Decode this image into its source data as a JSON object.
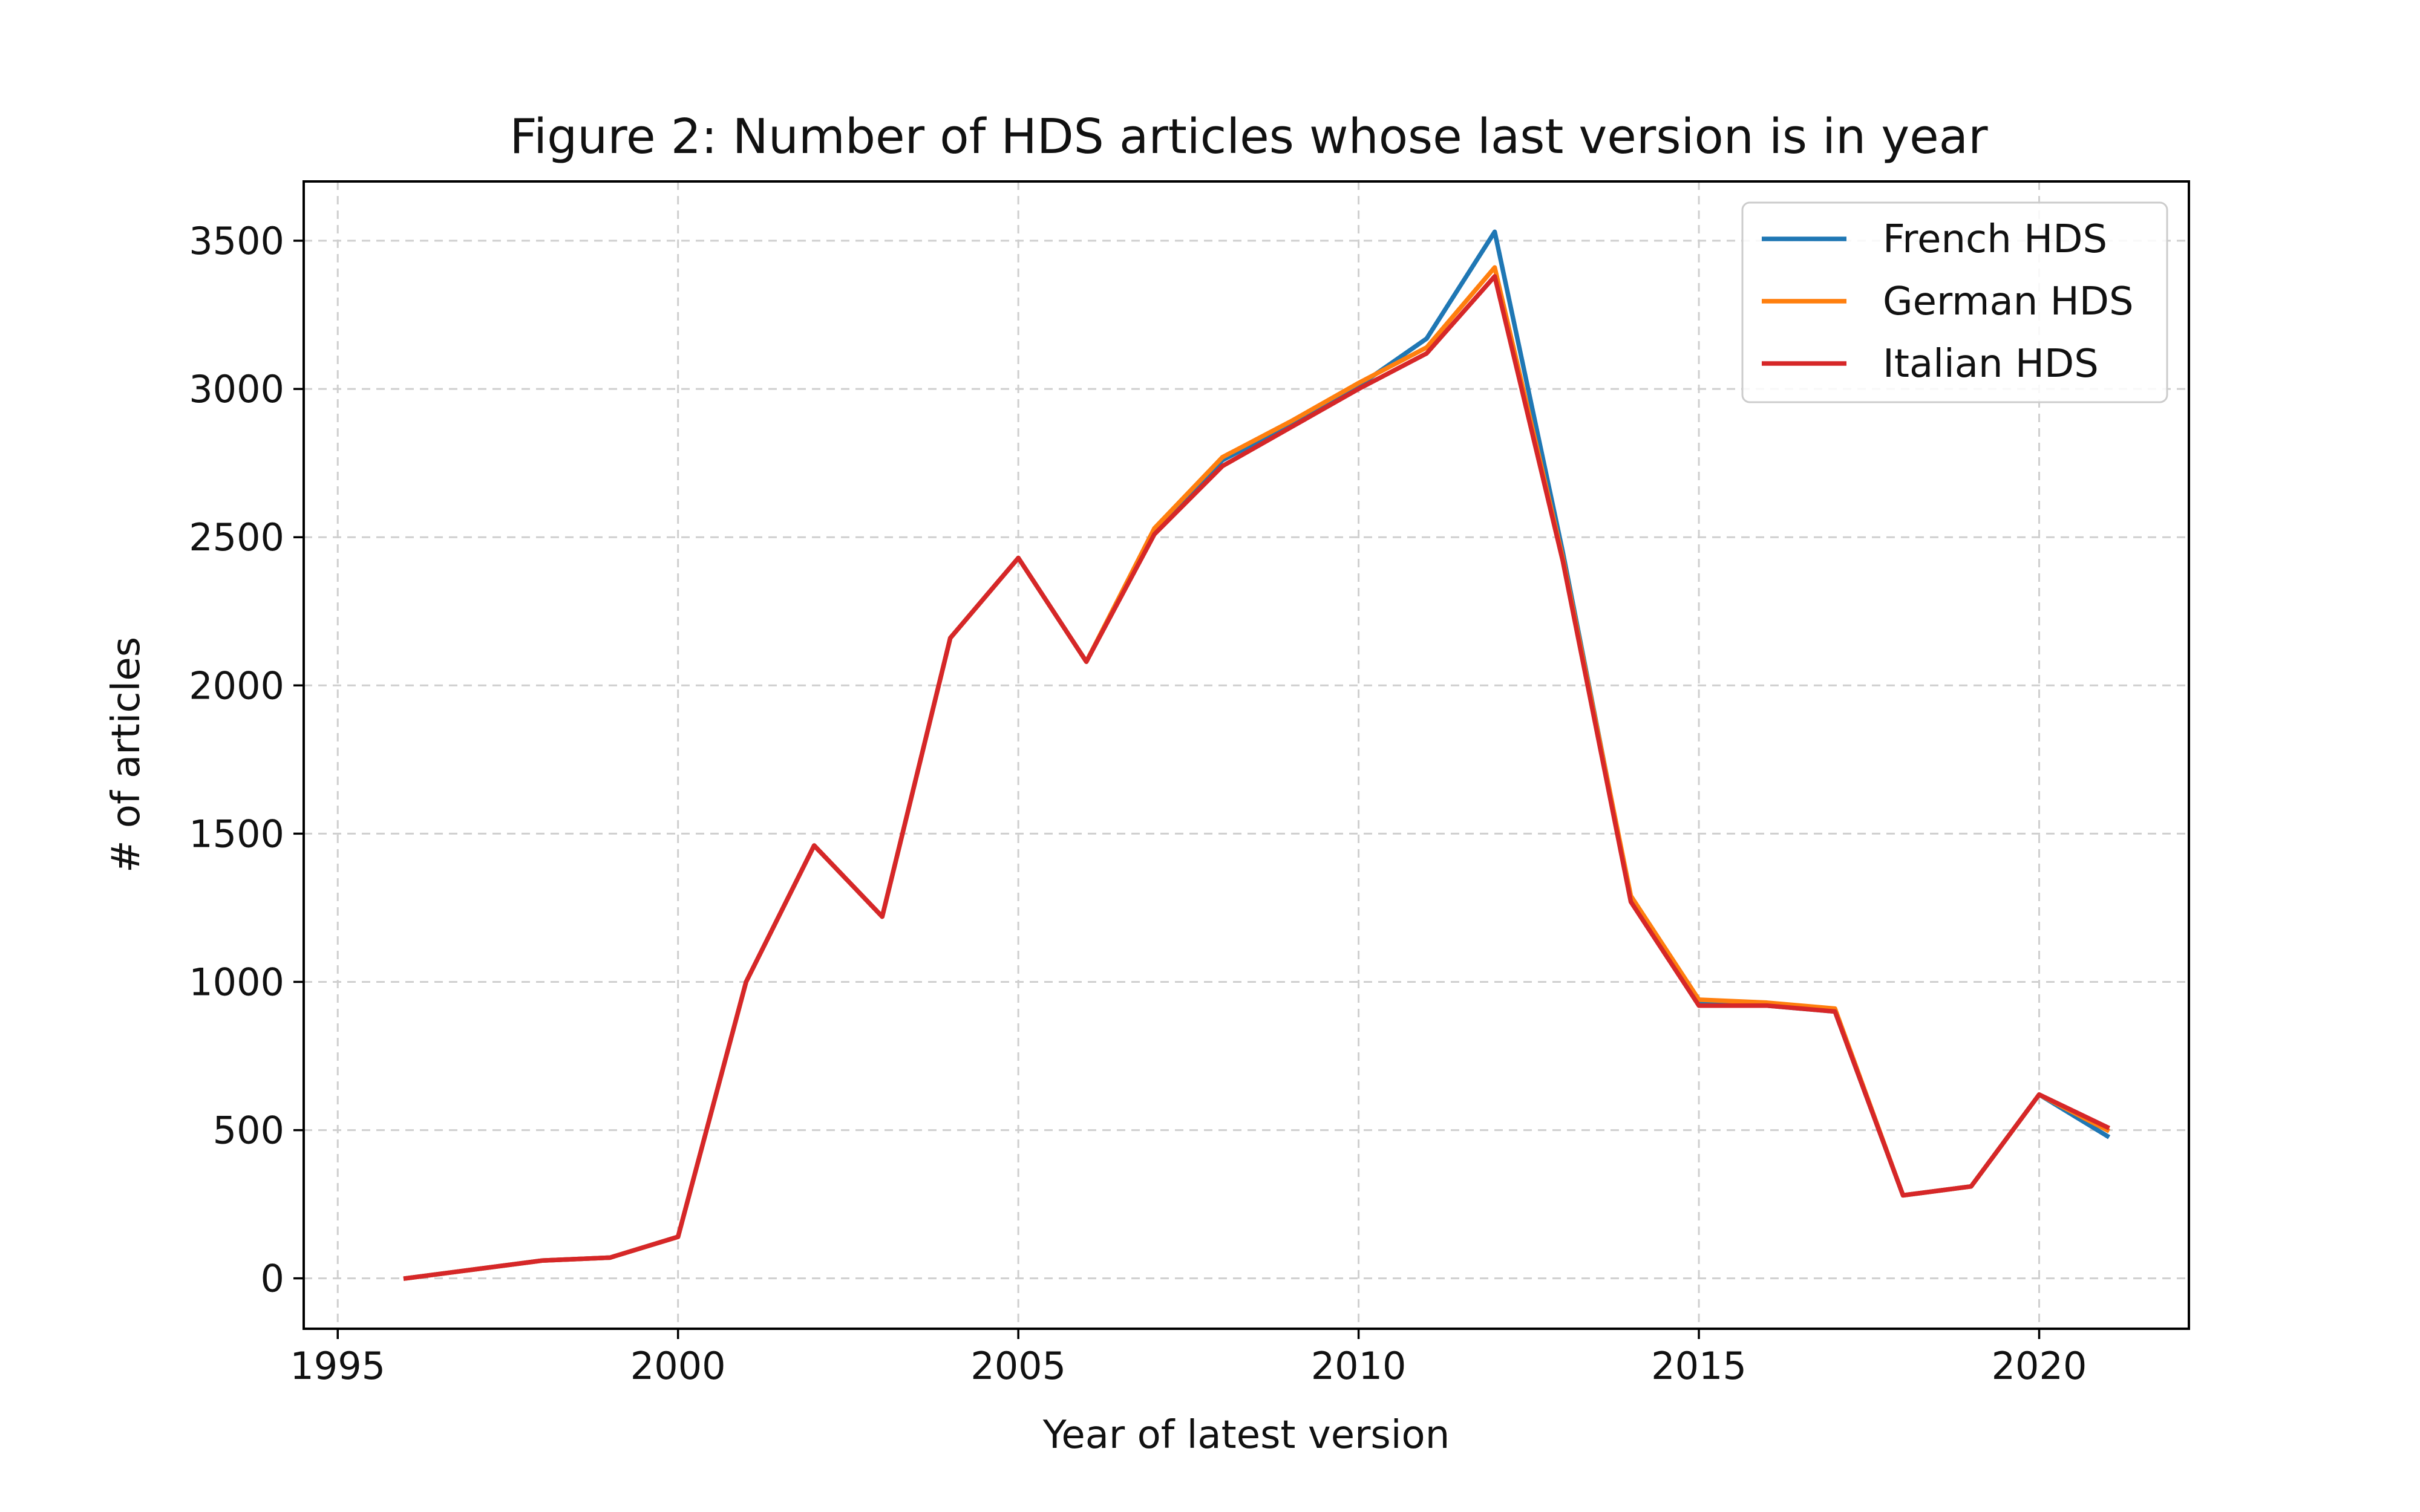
{
  "chart_data": {
    "type": "line",
    "title": "Figure 2: Number of HDS articles whose last version is in year",
    "xlabel": "Year of latest version",
    "ylabel": "# of articles",
    "xlim": [
      1994.5,
      2022.2
    ],
    "ylim": [
      -170,
      3700
    ],
    "x_ticks": [
      1995,
      2000,
      2005,
      2010,
      2015,
      2020
    ],
    "y_ticks": [
      0,
      500,
      1000,
      1500,
      2000,
      2500,
      3000,
      3500
    ],
    "grid": true,
    "legend_position": "top-right",
    "x": [
      1996,
      1997,
      1998,
      1999,
      2000,
      2001,
      2002,
      2003,
      2004,
      2005,
      2006,
      2007,
      2008,
      2009,
      2010,
      2011,
      2012,
      2013,
      2014,
      2015,
      2016,
      2017,
      2018,
      2019,
      2020,
      2021
    ],
    "series": [
      {
        "name": "French HDS",
        "color": "#1f77b4",
        "values": [
          0,
          30,
          60,
          70,
          140,
          1000,
          1460,
          1220,
          2160,
          2430,
          2080,
          2520,
          2760,
          2880,
          3010,
          3170,
          3530,
          2450,
          1280,
          930,
          920,
          900,
          280,
          310,
          620,
          480
        ]
      },
      {
        "name": "German HDS",
        "color": "#ff7f0e",
        "values": [
          0,
          30,
          60,
          70,
          140,
          1000,
          1460,
          1220,
          2160,
          2430,
          2080,
          2530,
          2770,
          2890,
          3020,
          3140,
          3410,
          2430,
          1290,
          940,
          930,
          910,
          280,
          310,
          620,
          500
        ]
      },
      {
        "name": "Italian HDS",
        "color": "#d62728",
        "values": [
          0,
          30,
          60,
          70,
          140,
          1000,
          1460,
          1220,
          2160,
          2430,
          2080,
          2510,
          2740,
          2870,
          3000,
          3120,
          3380,
          2420,
          1270,
          920,
          920,
          900,
          280,
          310,
          620,
          510
        ]
      }
    ]
  }
}
